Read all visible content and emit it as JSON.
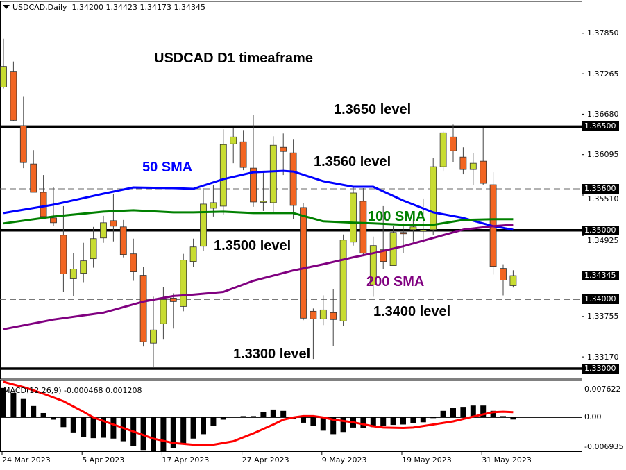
{
  "header": {
    "symbol": "USDCAD,Daily",
    "ohlc": "1.34200 1.34423 1.34173 1.34345",
    "menu_icon": "triangle-down-icon"
  },
  "annotations": {
    "title": "USDCAD D1 timeaframe",
    "level_1365": "1.3650 level",
    "level_1356": "1.3560 level",
    "level_1350": "1.3500 level",
    "level_1340": "1.3400 level",
    "level_1330": "1.3300 level",
    "sma50": "50 SMA",
    "sma100": "100 SMA",
    "sma200": "200 SMA"
  },
  "colors": {
    "bull": "#C8DC32",
    "bear": "#F26522",
    "sma50": "#0000FF",
    "sma100": "#008000",
    "sma200": "#800080",
    "signal": "#FF0000",
    "histogram": "#000000"
  },
  "chart_data": [
    {
      "type": "candlestick",
      "symbol": "USDCAD",
      "timeframe": "Daily",
      "ylim": [
        1.3285,
        1.3831
      ],
      "y_ticks": [
        "1.37850",
        "1.37265",
        "1.36680",
        "1.36095",
        "1.35510",
        "1.34925",
        "1.33755",
        "1.33170"
      ],
      "x_ticks": [
        {
          "index": 0,
          "label": "24 Mar 2023"
        },
        {
          "index": 8,
          "label": "5 Apr 2023"
        },
        {
          "index": 16,
          "label": "17 Apr 2023"
        },
        {
          "index": 24,
          "label": "27 Apr 2023"
        },
        {
          "index": 32,
          "label": "9 May 2023"
        },
        {
          "index": 40,
          "label": "19 May 2023"
        },
        {
          "index": 48,
          "label": "31 May 2023"
        }
      ],
      "ohlc": [
        [
          1.3707,
          1.3777,
          1.3705,
          1.3737
        ],
        [
          1.373,
          1.3744,
          1.3658,
          1.3659
        ],
        [
          1.3651,
          1.3693,
          1.359,
          1.3598
        ],
        [
          1.3596,
          1.3616,
          1.3555,
          1.3555
        ],
        [
          1.3555,
          1.358,
          1.3516,
          1.352
        ],
        [
          1.3518,
          1.3563,
          1.3506,
          1.3511
        ],
        [
          1.3493,
          1.3535,
          1.3411,
          1.3437
        ],
        [
          1.343,
          1.3467,
          1.3405,
          1.3444
        ],
        [
          1.3438,
          1.3482,
          1.3425,
          1.3456
        ],
        [
          1.3459,
          1.3505,
          1.3446,
          1.3488
        ],
        [
          1.3489,
          1.3521,
          1.3482,
          1.3511
        ],
        [
          1.3514,
          1.3553,
          1.3484,
          1.3506
        ],
        [
          1.3505,
          1.3515,
          1.3461,
          1.3465
        ],
        [
          1.3466,
          1.3488,
          1.3427,
          1.344
        ],
        [
          1.3435,
          1.3447,
          1.3332,
          1.3339
        ],
        [
          1.3337,
          1.3404,
          1.3301,
          1.3356
        ],
        [
          1.3365,
          1.3418,
          1.3342,
          1.34
        ],
        [
          1.3402,
          1.3409,
          1.3358,
          1.3397
        ],
        [
          1.339,
          1.3466,
          1.3383,
          1.3457
        ],
        [
          1.3455,
          1.3488,
          1.3447,
          1.3476
        ],
        [
          1.3477,
          1.3561,
          1.347,
          1.3538
        ],
        [
          1.3532,
          1.3565,
          1.352,
          1.354
        ],
        [
          1.3535,
          1.3646,
          1.3523,
          1.3624
        ],
        [
          1.3625,
          1.3648,
          1.3597,
          1.3635
        ],
        [
          1.3628,
          1.3645,
          1.3587,
          1.3591
        ],
        [
          1.359,
          1.3667,
          1.3534,
          1.3541
        ],
        [
          1.3541,
          1.3583,
          1.3528,
          1.3542
        ],
        [
          1.354,
          1.3636,
          1.3526,
          1.3623
        ],
        [
          1.362,
          1.364,
          1.358,
          1.3614
        ],
        [
          1.3612,
          1.3632,
          1.3516,
          1.3536
        ],
        [
          1.3533,
          1.3539,
          1.337,
          1.3373
        ],
        [
          1.3383,
          1.3387,
          1.3314,
          1.3372
        ],
        [
          1.3372,
          1.3406,
          1.3363,
          1.3385
        ],
        [
          1.3381,
          1.3415,
          1.3333,
          1.3371
        ],
        [
          1.3369,
          1.3494,
          1.3362,
          1.3486
        ],
        [
          1.3483,
          1.3563,
          1.3478,
          1.3554
        ],
        [
          1.3542,
          1.3561,
          1.3464,
          1.3467
        ],
        [
          1.3421,
          1.3491,
          1.3404,
          1.3478
        ],
        [
          1.3472,
          1.3535,
          1.3444,
          1.3455
        ],
        [
          1.3449,
          1.3506,
          1.3449,
          1.3497
        ],
        [
          1.3497,
          1.351,
          1.3467,
          1.3495
        ],
        [
          1.3501,
          1.3516,
          1.3484,
          1.3505
        ],
        [
          1.3499,
          1.3546,
          1.3482,
          1.35
        ],
        [
          1.3501,
          1.3605,
          1.3493,
          1.3592
        ],
        [
          1.3592,
          1.3643,
          1.3585,
          1.3641
        ],
        [
          1.3635,
          1.3653,
          1.3599,
          1.3615
        ],
        [
          1.3606,
          1.362,
          1.3581,
          1.3588
        ],
        [
          1.3588,
          1.3612,
          1.3565,
          1.3597
        ],
        [
          1.36,
          1.3648,
          1.3566,
          1.3568
        ],
        [
          1.3566,
          1.3584,
          1.3436,
          1.3448
        ],
        [
          1.3445,
          1.3451,
          1.3406,
          1.3428
        ],
        [
          1.342,
          1.34423,
          1.34173,
          1.34345
        ]
      ],
      "moving_averages": [
        {
          "name": "50 SMA",
          "points": [
            [
              0,
              1.3525
            ],
            [
              5,
              1.3537
            ],
            [
              10,
              1.3553
            ],
            [
              13,
              1.3562
            ],
            [
              17,
              1.3561
            ],
            [
              19,
              1.356
            ],
            [
              22,
              1.3574
            ],
            [
              25,
              1.3584
            ],
            [
              28,
              1.3586
            ],
            [
              29,
              1.3585
            ],
            [
              32,
              1.3571
            ],
            [
              35,
              1.3563
            ],
            [
              37,
              1.3563
            ],
            [
              40,
              1.3543
            ],
            [
              43,
              1.3526
            ],
            [
              46,
              1.3518
            ],
            [
              49,
              1.3506
            ],
            [
              51,
              1.3501
            ]
          ]
        },
        {
          "name": "100 SMA",
          "points": [
            [
              0,
              1.351
            ],
            [
              5,
              1.352
            ],
            [
              10,
              1.3527
            ],
            [
              13,
              1.3529
            ],
            [
              17,
              1.3526
            ],
            [
              19,
              1.3526
            ],
            [
              22,
              1.3527
            ],
            [
              25,
              1.3525
            ],
            [
              29,
              1.3525
            ],
            [
              32,
              1.3513
            ],
            [
              35,
              1.3511
            ],
            [
              37,
              1.351
            ],
            [
              40,
              1.3508
            ],
            [
              43,
              1.3508
            ],
            [
              46,
              1.3515
            ],
            [
              49,
              1.3516
            ],
            [
              51,
              1.3516
            ]
          ]
        },
        {
          "name": "200 SMA",
          "points": [
            [
              0,
              1.3357
            ],
            [
              5,
              1.3371
            ],
            [
              10,
              1.3381
            ],
            [
              14,
              1.3397
            ],
            [
              17,
              1.3405
            ],
            [
              19,
              1.3407
            ],
            [
              22,
              1.3411
            ],
            [
              25,
              1.3427
            ],
            [
              29,
              1.3442
            ],
            [
              32,
              1.3451
            ],
            [
              35,
              1.3461
            ],
            [
              37,
              1.3467
            ],
            [
              40,
              1.3477
            ],
            [
              43,
              1.3489
            ],
            [
              46,
              1.3501
            ],
            [
              49,
              1.3506
            ],
            [
              51,
              1.3508
            ]
          ]
        }
      ],
      "horizontal_levels": [
        {
          "price": "1.36500",
          "style": "solid"
        },
        {
          "price": "1.35600",
          "style": "dashed"
        },
        {
          "price": "1.35000",
          "style": "solid"
        },
        {
          "price": "1.34000",
          "style": "dashed"
        },
        {
          "price": "1.33000",
          "style": "solid"
        }
      ],
      "current_price": "1.34345"
    },
    {
      "type": "bar",
      "title": "MACD(12,26,9) -0.000468 0.001208",
      "ylim": [
        -0.006935,
        0.007622
      ],
      "y_ticks": [
        "0.007622",
        "0.00",
        "-0.006935"
      ],
      "histogram": [
        0.0067,
        0.0056,
        0.0042,
        0.0026,
        0.001,
        -0.0005,
        -0.0022,
        -0.0034,
        -0.0045,
        -0.0047,
        -0.0046,
        -0.0048,
        -0.0054,
        -0.0065,
        -0.0074,
        -0.0076,
        -0.0076,
        -0.007,
        -0.0061,
        -0.0048,
        -0.0038,
        -0.002,
        -0.0005,
        0.0002,
        0.0003,
        0.0003,
        0.0012,
        0.0018,
        0.0015,
        -0.0004,
        -0.0012,
        -0.0019,
        -0.003,
        -0.0038,
        -0.0033,
        -0.0023,
        -0.0024,
        -0.0022,
        -0.002,
        -0.0017,
        -0.0016,
        -0.0013,
        -0.0011,
        0.0,
        0.0015,
        0.0021,
        0.0024,
        0.0027,
        0.0027,
        0.0015,
        0.0003,
        -0.000468
      ],
      "signal_points": [
        [
          0,
          0.0083
        ],
        [
          2,
          0.0069
        ],
        [
          4,
          0.0054
        ],
        [
          6,
          0.0037
        ],
        [
          8,
          0.0013
        ],
        [
          9,
          0.0
        ],
        [
          11,
          -0.0016
        ],
        [
          13,
          -0.0032
        ],
        [
          15,
          -0.0048
        ],
        [
          17,
          -0.0058
        ],
        [
          19,
          -0.0062
        ],
        [
          21,
          -0.0062
        ],
        [
          23,
          -0.0054
        ],
        [
          25,
          -0.0036
        ],
        [
          27,
          -0.0016
        ],
        [
          28,
          -0.0005
        ],
        [
          29,
          0.0
        ],
        [
          30,
          0.0003
        ],
        [
          31,
          0.0003
        ],
        [
          32,
          0.0
        ],
        [
          33,
          -0.0005
        ],
        [
          35,
          -0.0011
        ],
        [
          37,
          -0.002
        ],
        [
          38,
          -0.0023
        ],
        [
          40,
          -0.0024
        ],
        [
          41,
          -0.0023
        ],
        [
          43,
          -0.0016
        ],
        [
          45,
          -0.0009
        ],
        [
          47,
          0.0002
        ],
        [
          49,
          0.0012
        ],
        [
          50,
          0.0013
        ],
        [
          51,
          0.001208
        ]
      ]
    }
  ]
}
